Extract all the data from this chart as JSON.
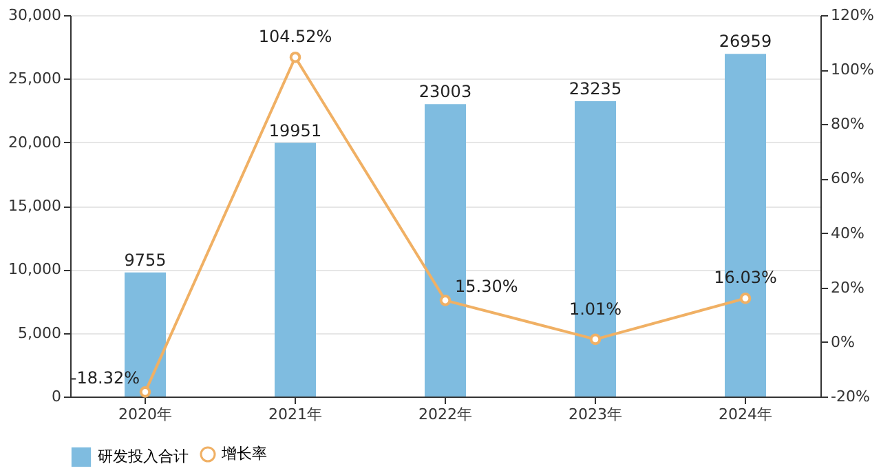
{
  "chart_data": {
    "type": "bar",
    "categories": [
      "2020年",
      "2021年",
      "2022年",
      "2023年",
      "2024年"
    ],
    "series": [
      {
        "name": "研发投入合计",
        "type": "bar",
        "color": "#7fbce0",
        "values": [
          9755,
          19951,
          23003,
          23235,
          26959
        ]
      },
      {
        "name": "增长率",
        "type": "line",
        "axis": "y2",
        "color": "#f0b064",
        "values": [
          -18.32,
          104.52,
          15.3,
          1.01,
          16.03
        ],
        "value_labels": [
          "-18.32%",
          "104.52%",
          "15.30%",
          "1.01%",
          "16.03%"
        ]
      }
    ],
    "data_labels": true,
    "ylim": [
      0,
      30000
    ],
    "yticks": [
      0,
      {
        "value": 5000,
        "label": "5,000"
      },
      {
        "value": 10000,
        "label": "10,000"
      },
      {
        "value": 15000,
        "label": "15,000"
      },
      {
        "value": 20000,
        "label": "20,000"
      },
      {
        "value": 25000,
        "label": "25,000"
      },
      {
        "value": 30000,
        "label": "30,000"
      }
    ],
    "y2lim": [
      -20,
      120
    ],
    "y2ticks": [
      {
        "value": -20,
        "label": "-20%"
      },
      {
        "value": 0,
        "label": "0%"
      },
      {
        "value": 20,
        "label": "20%"
      },
      {
        "value": 40,
        "label": "40%"
      },
      {
        "value": 60,
        "label": "60%"
      },
      {
        "value": 80,
        "label": "80%"
      },
      {
        "value": 100,
        "label": "100%"
      },
      {
        "value": 120,
        "label": "120%"
      }
    ],
    "grid": "y",
    "legend": "bottom",
    "marker": "circle",
    "line_style": "solid"
  }
}
